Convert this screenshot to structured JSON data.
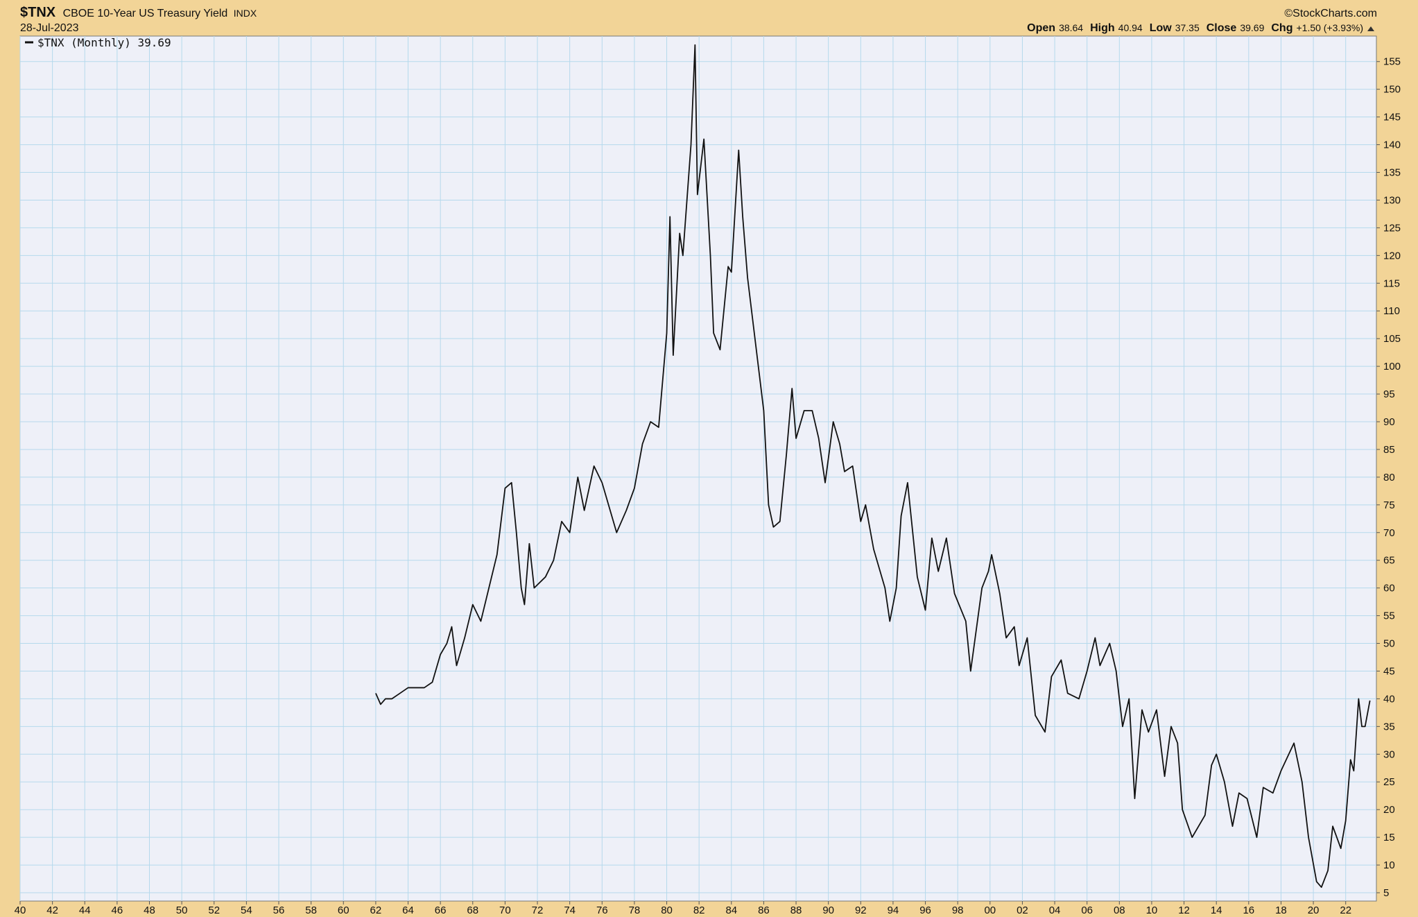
{
  "chart_data": {
    "type": "line",
    "title": "$TNX",
    "subtitle": "CBOE 10-Year US Treasury Yield",
    "exchange": "INDX",
    "date": "28-Jul-2023",
    "source": "©StockCharts.com",
    "quote": [
      {
        "label": "Open",
        "value": "38.64"
      },
      {
        "label": "High",
        "value": "40.94"
      },
      {
        "label": "Low",
        "value": "37.35"
      },
      {
        "label": "Close",
        "value": "39.69"
      },
      {
        "label": "Chg",
        "value": "+1.50 (+3.93%)"
      }
    ],
    "grid": true,
    "legend": "top-left",
    "x": [
      1962.0,
      1962.3,
      1962.6,
      1963.0,
      1963.5,
      1964.0,
      1964.5,
      1965.0,
      1965.5,
      1966.0,
      1966.4,
      1966.7,
      1967.0,
      1967.5,
      1968.0,
      1968.5,
      1969.0,
      1969.5,
      1970.0,
      1970.4,
      1970.7,
      1971.0,
      1971.2,
      1971.5,
      1971.8,
      1972.5,
      1973.0,
      1973.5,
      1974.0,
      1974.5,
      1974.9,
      1975.5,
      1976.0,
      1976.9,
      1977.5,
      1978.0,
      1978.5,
      1979.0,
      1979.5,
      1980.0,
      1980.2,
      1980.4,
      1980.8,
      1981.0,
      1981.5,
      1981.75,
      1981.9,
      1982.3,
      1982.7,
      1982.9,
      1983.3,
      1983.8,
      1984.0,
      1984.45,
      1984.7,
      1985.0,
      1985.5,
      1986.0,
      1986.3,
      1986.6,
      1987.0,
      1987.4,
      1987.75,
      1988.0,
      1988.5,
      1989.0,
      1989.4,
      1989.8,
      1990.3,
      1990.7,
      1991.0,
      1991.5,
      1992.0,
      1992.3,
      1992.8,
      1993.5,
      1993.8,
      1994.2,
      1994.5,
      1994.9,
      1995.5,
      1996.0,
      1996.4,
      1996.8,
      1997.3,
      1997.8,
      1998.5,
      1998.8,
      1999.5,
      1999.9,
      2000.1,
      2000.6,
      2001.0,
      2001.5,
      2001.8,
      2002.3,
      2002.8,
      2003.4,
      2003.8,
      2004.4,
      2004.8,
      2005.5,
      2006.0,
      2006.5,
      2006.8,
      2007.4,
      2007.8,
      2008.2,
      2008.6,
      2008.95,
      2009.4,
      2009.8,
      2010.3,
      2010.8,
      2011.2,
      2011.6,
      2011.9,
      2012.5,
      2012.9,
      2013.3,
      2013.7,
      2014.0,
      2014.5,
      2015.0,
      2015.4,
      2015.9,
      2016.5,
      2016.9,
      2017.5,
      2018.0,
      2018.8,
      2019.3,
      2019.7,
      2020.2,
      2020.5,
      2020.9,
      2021.2,
      2021.7,
      2022.0,
      2022.3,
      2022.5,
      2022.8,
      2023.0,
      2023.2,
      2023.5
    ],
    "ylim": [
      3.5,
      159.6
    ],
    "xlim": [
      1940,
      2023.9
    ],
    "yticks": [
      5,
      10,
      15,
      20,
      25,
      30,
      35,
      40,
      45,
      50,
      55,
      60,
      65,
      70,
      75,
      80,
      85,
      90,
      95,
      100,
      105,
      110,
      115,
      120,
      125,
      130,
      135,
      140,
      145,
      150,
      155
    ],
    "xticks": [
      {
        "value": 1940,
        "label": "40"
      },
      {
        "value": 1942,
        "label": "42"
      },
      {
        "value": 1944,
        "label": "44"
      },
      {
        "value": 1946,
        "label": "46"
      },
      {
        "value": 1948,
        "label": "48"
      },
      {
        "value": 1950,
        "label": "50"
      },
      {
        "value": 1952,
        "label": "52"
      },
      {
        "value": 1954,
        "label": "54"
      },
      {
        "value": 1956,
        "label": "56"
      },
      {
        "value": 1958,
        "label": "58"
      },
      {
        "value": 1960,
        "label": "60"
      },
      {
        "value": 1962,
        "label": "62"
      },
      {
        "value": 1964,
        "label": "64"
      },
      {
        "value": 1966,
        "label": "66"
      },
      {
        "value": 1968,
        "label": "68"
      },
      {
        "value": 1970,
        "label": "70"
      },
      {
        "value": 1972,
        "label": "72"
      },
      {
        "value": 1974,
        "label": "74"
      },
      {
        "value": 1976,
        "label": "76"
      },
      {
        "value": 1978,
        "label": "78"
      },
      {
        "value": 1980,
        "label": "80"
      },
      {
        "value": 1982,
        "label": "82"
      },
      {
        "value": 1984,
        "label": "84"
      },
      {
        "value": 1986,
        "label": "86"
      },
      {
        "value": 1988,
        "label": "88"
      },
      {
        "value": 1990,
        "label": "90"
      },
      {
        "value": 1992,
        "label": "92"
      },
      {
        "value": 1994,
        "label": "94"
      },
      {
        "value": 1996,
        "label": "96"
      },
      {
        "value": 1998,
        "label": "98"
      },
      {
        "value": 2000,
        "label": "00"
      },
      {
        "value": 2002,
        "label": "02"
      },
      {
        "value": 2004,
        "label": "04"
      },
      {
        "value": 2006,
        "label": "06"
      },
      {
        "value": 2008,
        "label": "08"
      },
      {
        "value": 2010,
        "label": "10"
      },
      {
        "value": 2012,
        "label": "12"
      },
      {
        "value": 2014,
        "label": "14"
      },
      {
        "value": 2016,
        "label": "16"
      },
      {
        "value": 2018,
        "label": "18"
      },
      {
        "value": 2020,
        "label": "20"
      },
      {
        "value": 2022,
        "label": "22"
      }
    ],
    "series": [
      {
        "name": "$TNX (Monthly) 39.69",
        "color": "#111111",
        "values": [
          41,
          39,
          40,
          40,
          41,
          42,
          42,
          42,
          43,
          48,
          50,
          53,
          46,
          51,
          57,
          54,
          60,
          66,
          78,
          79,
          70,
          60,
          57,
          68,
          60,
          62,
          65,
          72,
          70,
          80,
          74,
          82,
          79,
          70,
          74,
          78,
          86,
          90,
          89,
          106,
          127,
          102,
          124,
          120,
          140,
          158,
          131,
          141,
          120,
          106,
          103,
          118,
          117,
          139,
          127,
          116,
          104,
          92,
          75,
          71,
          72,
          84,
          96,
          87,
          92,
          92,
          87,
          79,
          90,
          86,
          81,
          82,
          72,
          75,
          67,
          60,
          54,
          60,
          73,
          79,
          62,
          56,
          69,
          63,
          69,
          59,
          54,
          45,
          60,
          63,
          66,
          59,
          51,
          53,
          46,
          51,
          37,
          34,
          44,
          47,
          41,
          40,
          45,
          51,
          46,
          50,
          45,
          35,
          40,
          22,
          38,
          34,
          38,
          26,
          35,
          32,
          20,
          15,
          17,
          19,
          28,
          30,
          25,
          17,
          23,
          22,
          15,
          24,
          23,
          27,
          32,
          25,
          15,
          7,
          6,
          9,
          17,
          13,
          18,
          29,
          27,
          40,
          35,
          35,
          39.69
        ]
      }
    ]
  }
}
